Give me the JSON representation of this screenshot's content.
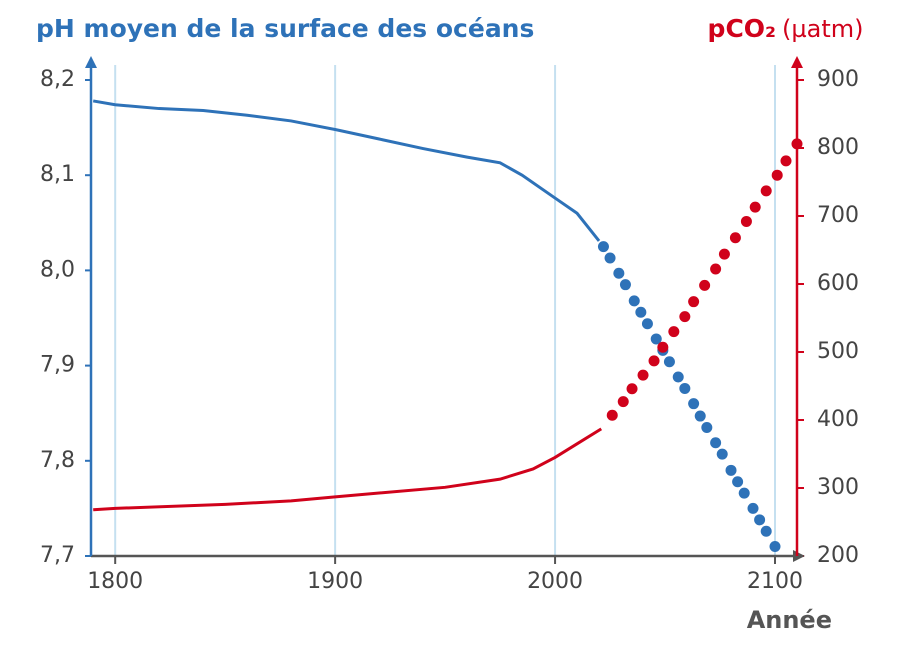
{
  "chart_data": {
    "type": "line",
    "title": "pH moyen de la surface des océans",
    "y2_title": "pCO₂",
    "y2_unit": "(µatm)",
    "xlabel": "Année",
    "xlim": [
      1789,
      2110
    ],
    "xticks": [
      1800,
      1900,
      2000,
      2100
    ],
    "ylim": [
      7.7,
      8.2
    ],
    "yticks": [
      {
        "value": 7.7,
        "label": "7,7"
      },
      {
        "value": 7.8,
        "label": "7,8"
      },
      {
        "value": 7.9,
        "label": "7,9"
      },
      {
        "value": 8.0,
        "label": "8,0"
      },
      {
        "value": 8.1,
        "label": "8,1"
      },
      {
        "value": 8.2,
        "label": "8,2"
      }
    ],
    "y2lim": [
      200,
      900
    ],
    "y2ticks": [
      200,
      300,
      400,
      500,
      600,
      700,
      800,
      900
    ],
    "grid": true,
    "grid_color": "#c5e0f0",
    "y_color": "#2e72b8",
    "y2_color": "#d0021b",
    "series": [
      {
        "color": "#2e72b8",
        "style": "line",
        "axis": "y",
        "x": [
          1790,
          1800,
          1820,
          1840,
          1860,
          1880,
          1900,
          1920,
          1940,
          1960,
          1975,
          1985,
          2000,
          2010,
          2020
        ],
        "values": [
          8.178,
          8.174,
          8.17,
          8.168,
          8.163,
          8.157,
          8.148,
          8.138,
          8.128,
          8.119,
          8.113,
          8.1,
          8.076,
          8.06,
          8.031
        ]
      },
      {
        "color": "#2e72b8",
        "style": "dots",
        "axis": "y",
        "x": [
          2022,
          2025,
          2029,
          2032,
          2036,
          2039,
          2042,
          2046,
          2049,
          2052,
          2056,
          2059,
          2063,
          2066,
          2069,
          2073,
          2076,
          2080,
          2083,
          2086,
          2090,
          2093,
          2096,
          2100
        ],
        "values": [
          8.025,
          8.013,
          7.997,
          7.985,
          7.968,
          7.956,
          7.944,
          7.928,
          7.916,
          7.904,
          7.888,
          7.876,
          7.86,
          7.847,
          7.835,
          7.819,
          7.807,
          7.79,
          7.778,
          7.766,
          7.75,
          7.738,
          7.726,
          7.71
        ]
      },
      {
        "color": "#d0021b",
        "style": "line",
        "axis": "y2",
        "x": [
          1790,
          1800,
          1850,
          1880,
          1900,
          1950,
          1975,
          1990,
          2000,
          2010,
          2021
        ],
        "values": [
          268,
          270,
          276,
          281,
          287,
          301,
          313,
          328,
          345,
          365,
          387
        ]
      },
      {
        "color": "#d0021b",
        "style": "dots",
        "axis": "y2",
        "x": [
          2026,
          2031,
          2035,
          2040,
          2045,
          2049,
          2054,
          2059,
          2063,
          2068,
          2073,
          2077,
          2082,
          2087,
          2091,
          2096,
          2101,
          2105,
          2110
        ],
        "values": [
          407,
          427,
          446,
          466,
          487,
          507,
          530,
          552,
          574,
          598,
          622,
          644,
          668,
          692,
          713,
          737,
          760,
          781,
          806
        ]
      }
    ]
  }
}
